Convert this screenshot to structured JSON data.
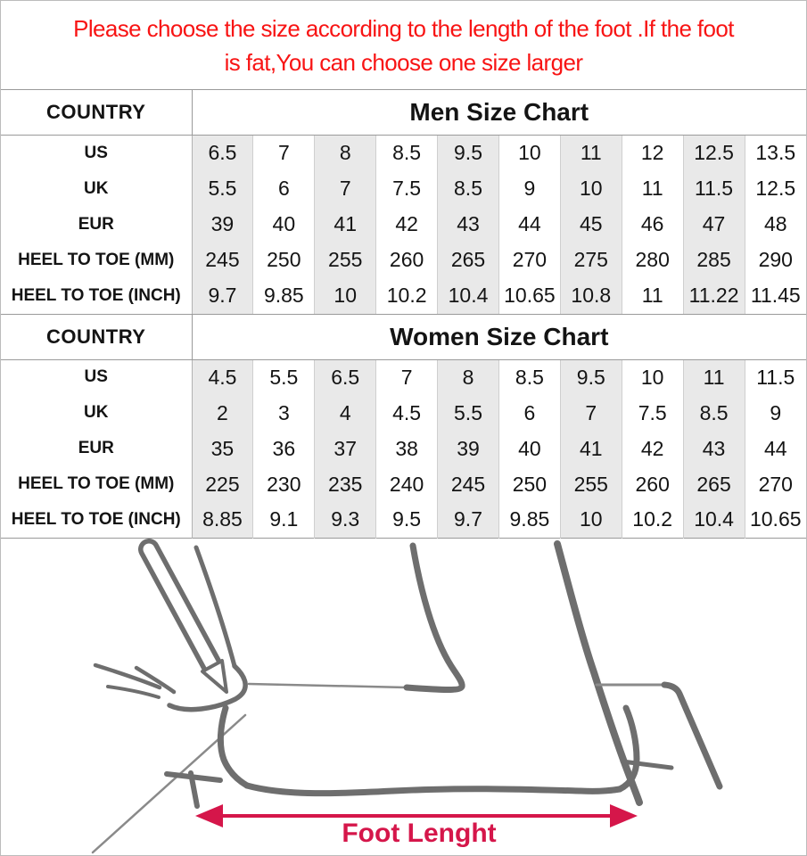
{
  "notice": {
    "line1": "Please choose the size according to the length of the foot .If the foot",
    "line2": "is fat,You can choose one size larger"
  },
  "men_table": {
    "country_label": "COUNTRY",
    "title": "Men Size Chart",
    "rows": [
      {
        "label": "US",
        "values": [
          "6.5",
          "7",
          "8",
          "8.5",
          "9.5",
          "10",
          "11",
          "12",
          "12.5",
          "13.5"
        ]
      },
      {
        "label": "UK",
        "values": [
          "5.5",
          "6",
          "7",
          "7.5",
          "8.5",
          "9",
          "10",
          "11",
          "11.5",
          "12.5"
        ]
      },
      {
        "label": "EUR",
        "values": [
          "39",
          "40",
          "41",
          "42",
          "43",
          "44",
          "45",
          "46",
          "47",
          "48"
        ]
      },
      {
        "label": "HEEL TO TOE (MM)",
        "values": [
          "245",
          "250",
          "255",
          "260",
          "265",
          "270",
          "275",
          "280",
          "285",
          "290"
        ]
      },
      {
        "label": "HEEL TO TOE (INCH)",
        "values": [
          "9.7",
          "9.85",
          "10",
          "10.2",
          "10.4",
          "10.65",
          "10.8",
          "11",
          "11.22",
          "11.45"
        ]
      }
    ]
  },
  "women_table": {
    "country_label": "COUNTRY",
    "title": "Women Size Chart",
    "rows": [
      {
        "label": "US",
        "values": [
          "4.5",
          "5.5",
          "6.5",
          "7",
          "8",
          "8.5",
          "9.5",
          "10",
          "11",
          "11.5"
        ]
      },
      {
        "label": "UK",
        "values": [
          "2",
          "3",
          "4",
          "4.5",
          "5.5",
          "6",
          "7",
          "7.5",
          "8.5",
          "9"
        ]
      },
      {
        "label": "EUR",
        "values": [
          "35",
          "36",
          "37",
          "38",
          "39",
          "40",
          "41",
          "42",
          "43",
          "44"
        ]
      },
      {
        "label": "HEEL TO TOE (MM)",
        "values": [
          "225",
          "230",
          "235",
          "240",
          "245",
          "250",
          "255",
          "260",
          "265",
          "270"
        ]
      },
      {
        "label": "HEEL TO TOE (INCH)",
        "values": [
          "8.85",
          "9.1",
          "9.3",
          "9.5",
          "9.7",
          "9.85",
          "10",
          "10.2",
          "10.4",
          "10.65"
        ]
      }
    ]
  },
  "diagram": {
    "label": "Foot Lenght",
    "arrow_icon": "double-headed-arrow"
  },
  "colors": {
    "warning_red": "#f81414",
    "measure_crimson": "#d5164a",
    "stripe_gray": "#e9e9e9",
    "line_gray": "#9a9a9a",
    "drawing_gray": "#6e6e6e"
  }
}
